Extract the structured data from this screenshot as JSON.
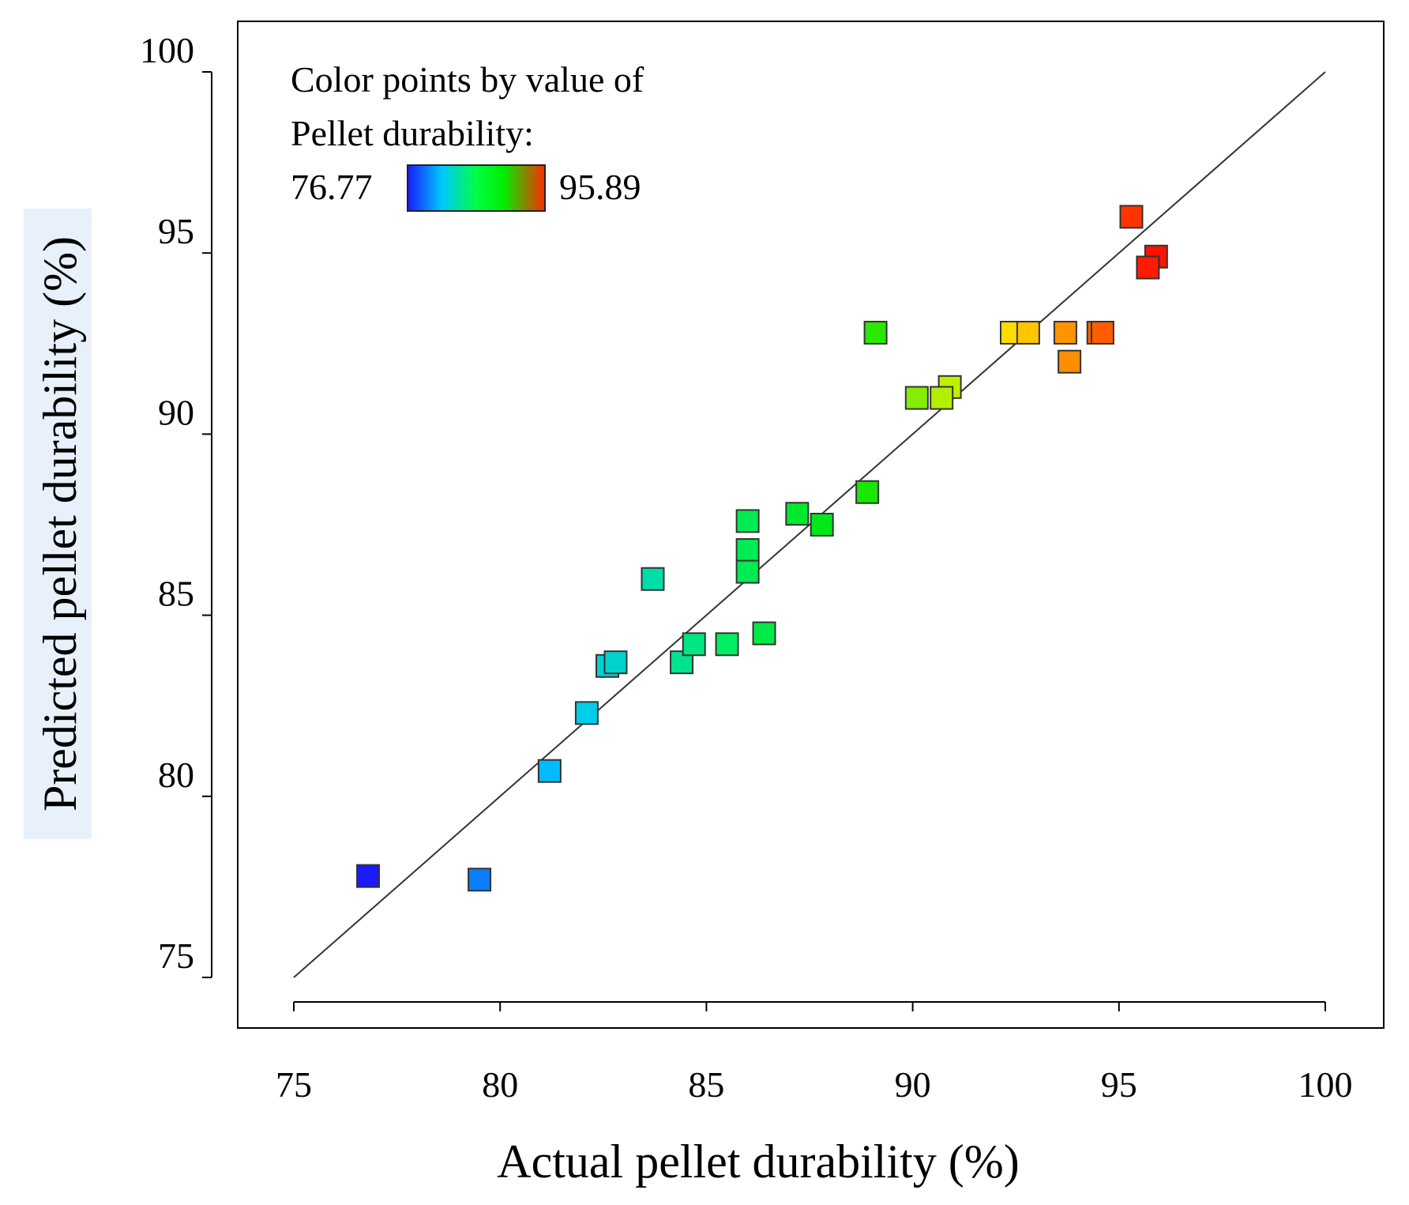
{
  "chart_data": {
    "type": "scatter",
    "xlabel": "Actual pellet durability (%)",
    "ylabel": "Predicted pellet durability (%)",
    "xlim": [
      73.6,
      101.4
    ],
    "ylim": [
      73.6,
      101.4
    ],
    "xticks": [
      75,
      80,
      85,
      90,
      95,
      100
    ],
    "yticks": [
      75,
      80,
      85,
      90,
      95,
      100
    ],
    "x_tick_labels": [
      "75",
      "80",
      "85",
      "90",
      "95",
      "100"
    ],
    "y_tick_labels": [
      "75",
      "80",
      "85",
      "90",
      "95",
      "100"
    ],
    "reference_line": {
      "from": [
        75,
        75
      ],
      "to": [
        100,
        100
      ]
    },
    "legend": {
      "line1": "Color points by value of",
      "line2": "Pellet durability:",
      "min_label": "76.77",
      "max_label": "95.89",
      "min": 76.77,
      "max": 95.89,
      "gradient": [
        "#1a1aff",
        "#00c8ff",
        "#00ff44",
        "#00ee00",
        "#ff2a00"
      ],
      "placement": "top-left"
    },
    "points": [
      {
        "x": 76.8,
        "y": 77.8
      },
      {
        "x": 79.5,
        "y": 77.7
      },
      {
        "x": 81.2,
        "y": 80.7
      },
      {
        "x": 82.1,
        "y": 82.3
      },
      {
        "x": 82.6,
        "y": 83.6
      },
      {
        "x": 82.8,
        "y": 83.7
      },
      {
        "x": 83.7,
        "y": 86.0
      },
      {
        "x": 84.4,
        "y": 83.7
      },
      {
        "x": 84.7,
        "y": 84.2
      },
      {
        "x": 85.5,
        "y": 84.2
      },
      {
        "x": 86.4,
        "y": 84.5
      },
      {
        "x": 86.0,
        "y": 87.6
      },
      {
        "x": 86.0,
        "y": 86.8
      },
      {
        "x": 86.0,
        "y": 86.2
      },
      {
        "x": 87.2,
        "y": 87.8
      },
      {
        "x": 87.8,
        "y": 87.5
      },
      {
        "x": 88.9,
        "y": 88.4
      },
      {
        "x": 89.1,
        "y": 92.8
      },
      {
        "x": 90.1,
        "y": 91.0
      },
      {
        "x": 90.9,
        "y": 91.3
      },
      {
        "x": 90.7,
        "y": 91.0
      },
      {
        "x": 92.4,
        "y": 92.8
      },
      {
        "x": 92.8,
        "y": 92.8
      },
      {
        "x": 93.7,
        "y": 92.8
      },
      {
        "x": 93.8,
        "y": 92.0
      },
      {
        "x": 94.5,
        "y": 92.8
      },
      {
        "x": 94.6,
        "y": 92.8
      },
      {
        "x": 95.3,
        "y": 96.0
      },
      {
        "x": 95.9,
        "y": 94.9
      },
      {
        "x": 95.7,
        "y": 94.6
      }
    ]
  }
}
